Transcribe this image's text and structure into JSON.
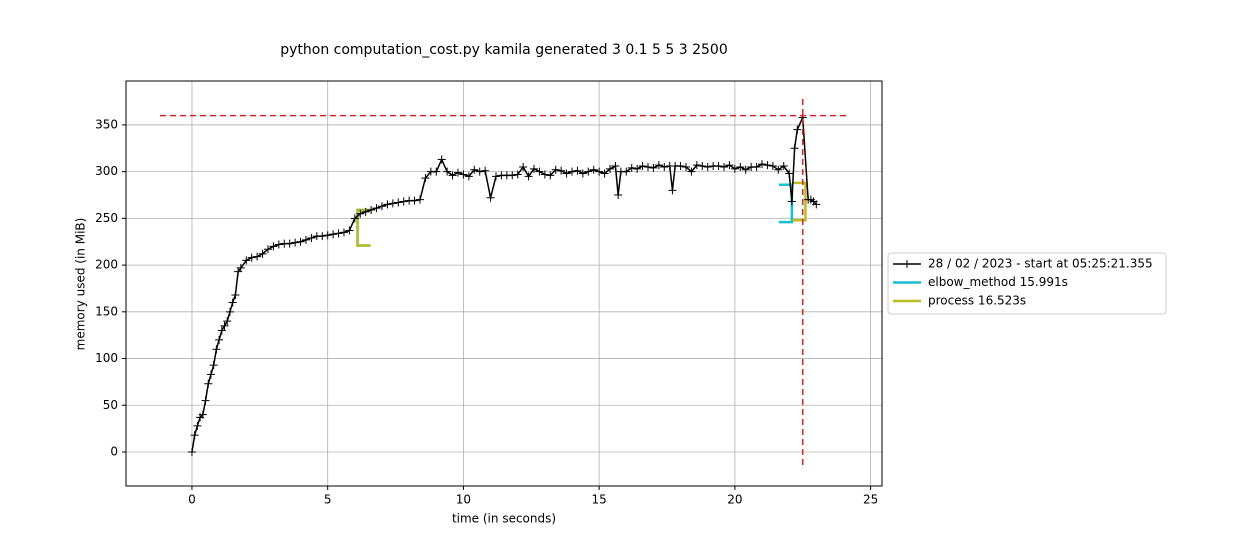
{
  "chart_data": {
    "type": "line",
    "title": "python computation_cost.py kamila generated 3 0.1 5 5 3 2500",
    "x_label": "time (in seconds)",
    "y_label": "memory used (in MiB)",
    "xlim": [
      -2.43,
      25.42
    ],
    "ylim": [
      -36.4,
      397
    ],
    "xticks": [
      0,
      5,
      10,
      15,
      20,
      25
    ],
    "yticks": [
      0,
      50,
      100,
      150,
      200,
      250,
      300,
      350
    ],
    "grid": true,
    "legend": "outside right",
    "x": [
      0,
      0.1,
      0.2,
      0.3,
      0.4,
      0.5,
      0.6,
      0.7,
      0.8,
      0.9,
      1.0,
      1.1,
      1.2,
      1.3,
      1.4,
      1.5,
      1.6,
      1.7,
      1.8,
      2.0,
      2.2,
      2.4,
      2.6,
      2.8,
      3.0,
      3.2,
      3.4,
      3.6,
      3.8,
      4.0,
      4.2,
      4.4,
      4.6,
      4.8,
      5.0,
      5.2,
      5.4,
      5.6,
      5.8,
      6.0,
      6.2,
      6.4,
      6.6,
      6.8,
      7.0,
      7.2,
      7.4,
      7.6,
      7.8,
      8.0,
      8.2,
      8.4,
      8.6,
      8.8,
      9.0,
      9.2,
      9.4,
      9.6,
      9.8,
      10.0,
      10.2,
      10.4,
      10.6,
      10.8,
      11.0,
      11.2,
      11.4,
      11.6,
      11.8,
      12.0,
      12.2,
      12.4,
      12.6,
      12.8,
      13.0,
      13.2,
      13.4,
      13.6,
      13.8,
      14.0,
      14.2,
      14.4,
      14.6,
      14.8,
      15.0,
      15.2,
      15.4,
      15.6,
      15.7,
      15.8,
      16.0,
      16.2,
      16.4,
      16.6,
      16.8,
      17.0,
      17.2,
      17.4,
      17.6,
      17.7,
      17.8,
      18.0,
      18.2,
      18.4,
      18.6,
      18.8,
      19.0,
      19.2,
      19.4,
      19.6,
      19.8,
      20.0,
      20.2,
      20.4,
      20.6,
      20.8,
      21.0,
      21.2,
      21.4,
      21.6,
      21.8,
      22.0,
      22.1,
      22.2,
      22.3,
      22.5,
      22.7,
      22.8,
      22.9,
      23.0
    ],
    "series": [
      {
        "name": "28 / 02 / 2023 - start at 05:25:21.355",
        "color": "#000000",
        "values": [
          0,
          18,
          28,
          37,
          40,
          55,
          73,
          83,
          93,
          110,
          120,
          130,
          135,
          140,
          150,
          160,
          168,
          193,
          197,
          205,
          208,
          209,
          212,
          217,
          220,
          222,
          223,
          223,
          224,
          225,
          227,
          229,
          231,
          231,
          232,
          233,
          234,
          235,
          237,
          250,
          255,
          257,
          259,
          261,
          263,
          265,
          266,
          267,
          268,
          269,
          269,
          270,
          293,
          300,
          300,
          313,
          300,
          296,
          299,
          297,
          295,
          302,
          300,
          301,
          272,
          295,
          296,
          296,
          296,
          297,
          305,
          295,
          303,
          300,
          297,
          296,
          302,
          301,
          298,
          300,
          301,
          298,
          300,
          302,
          300,
          298,
          303,
          306,
          275,
          300,
          300,
          304,
          303,
          306,
          305,
          304,
          307,
          305,
          306,
          280,
          306,
          306,
          305,
          300,
          307,
          306,
          305,
          306,
          306,
          305,
          307,
          303,
          305,
          302,
          305,
          305,
          308,
          307,
          306,
          302,
          306,
          298,
          268,
          325,
          345,
          358,
          270,
          270,
          268,
          265
        ]
      }
    ],
    "functions": [
      {
        "name": "elbow_method 15.991s",
        "color": "#17becf",
        "start": 6.1,
        "end": 22.1,
        "start_range": [
          221,
          259
        ],
        "end_range": [
          246,
          286
        ]
      },
      {
        "name": "process 16.523s",
        "color": "#bcbd22",
        "start": 6.1,
        "end": 22.6,
        "start_range": [
          221,
          259
        ],
        "end_range": [
          248,
          288
        ]
      }
    ],
    "max_memory": 360,
    "max_time": 22.5,
    "max_color": "#d62728"
  }
}
